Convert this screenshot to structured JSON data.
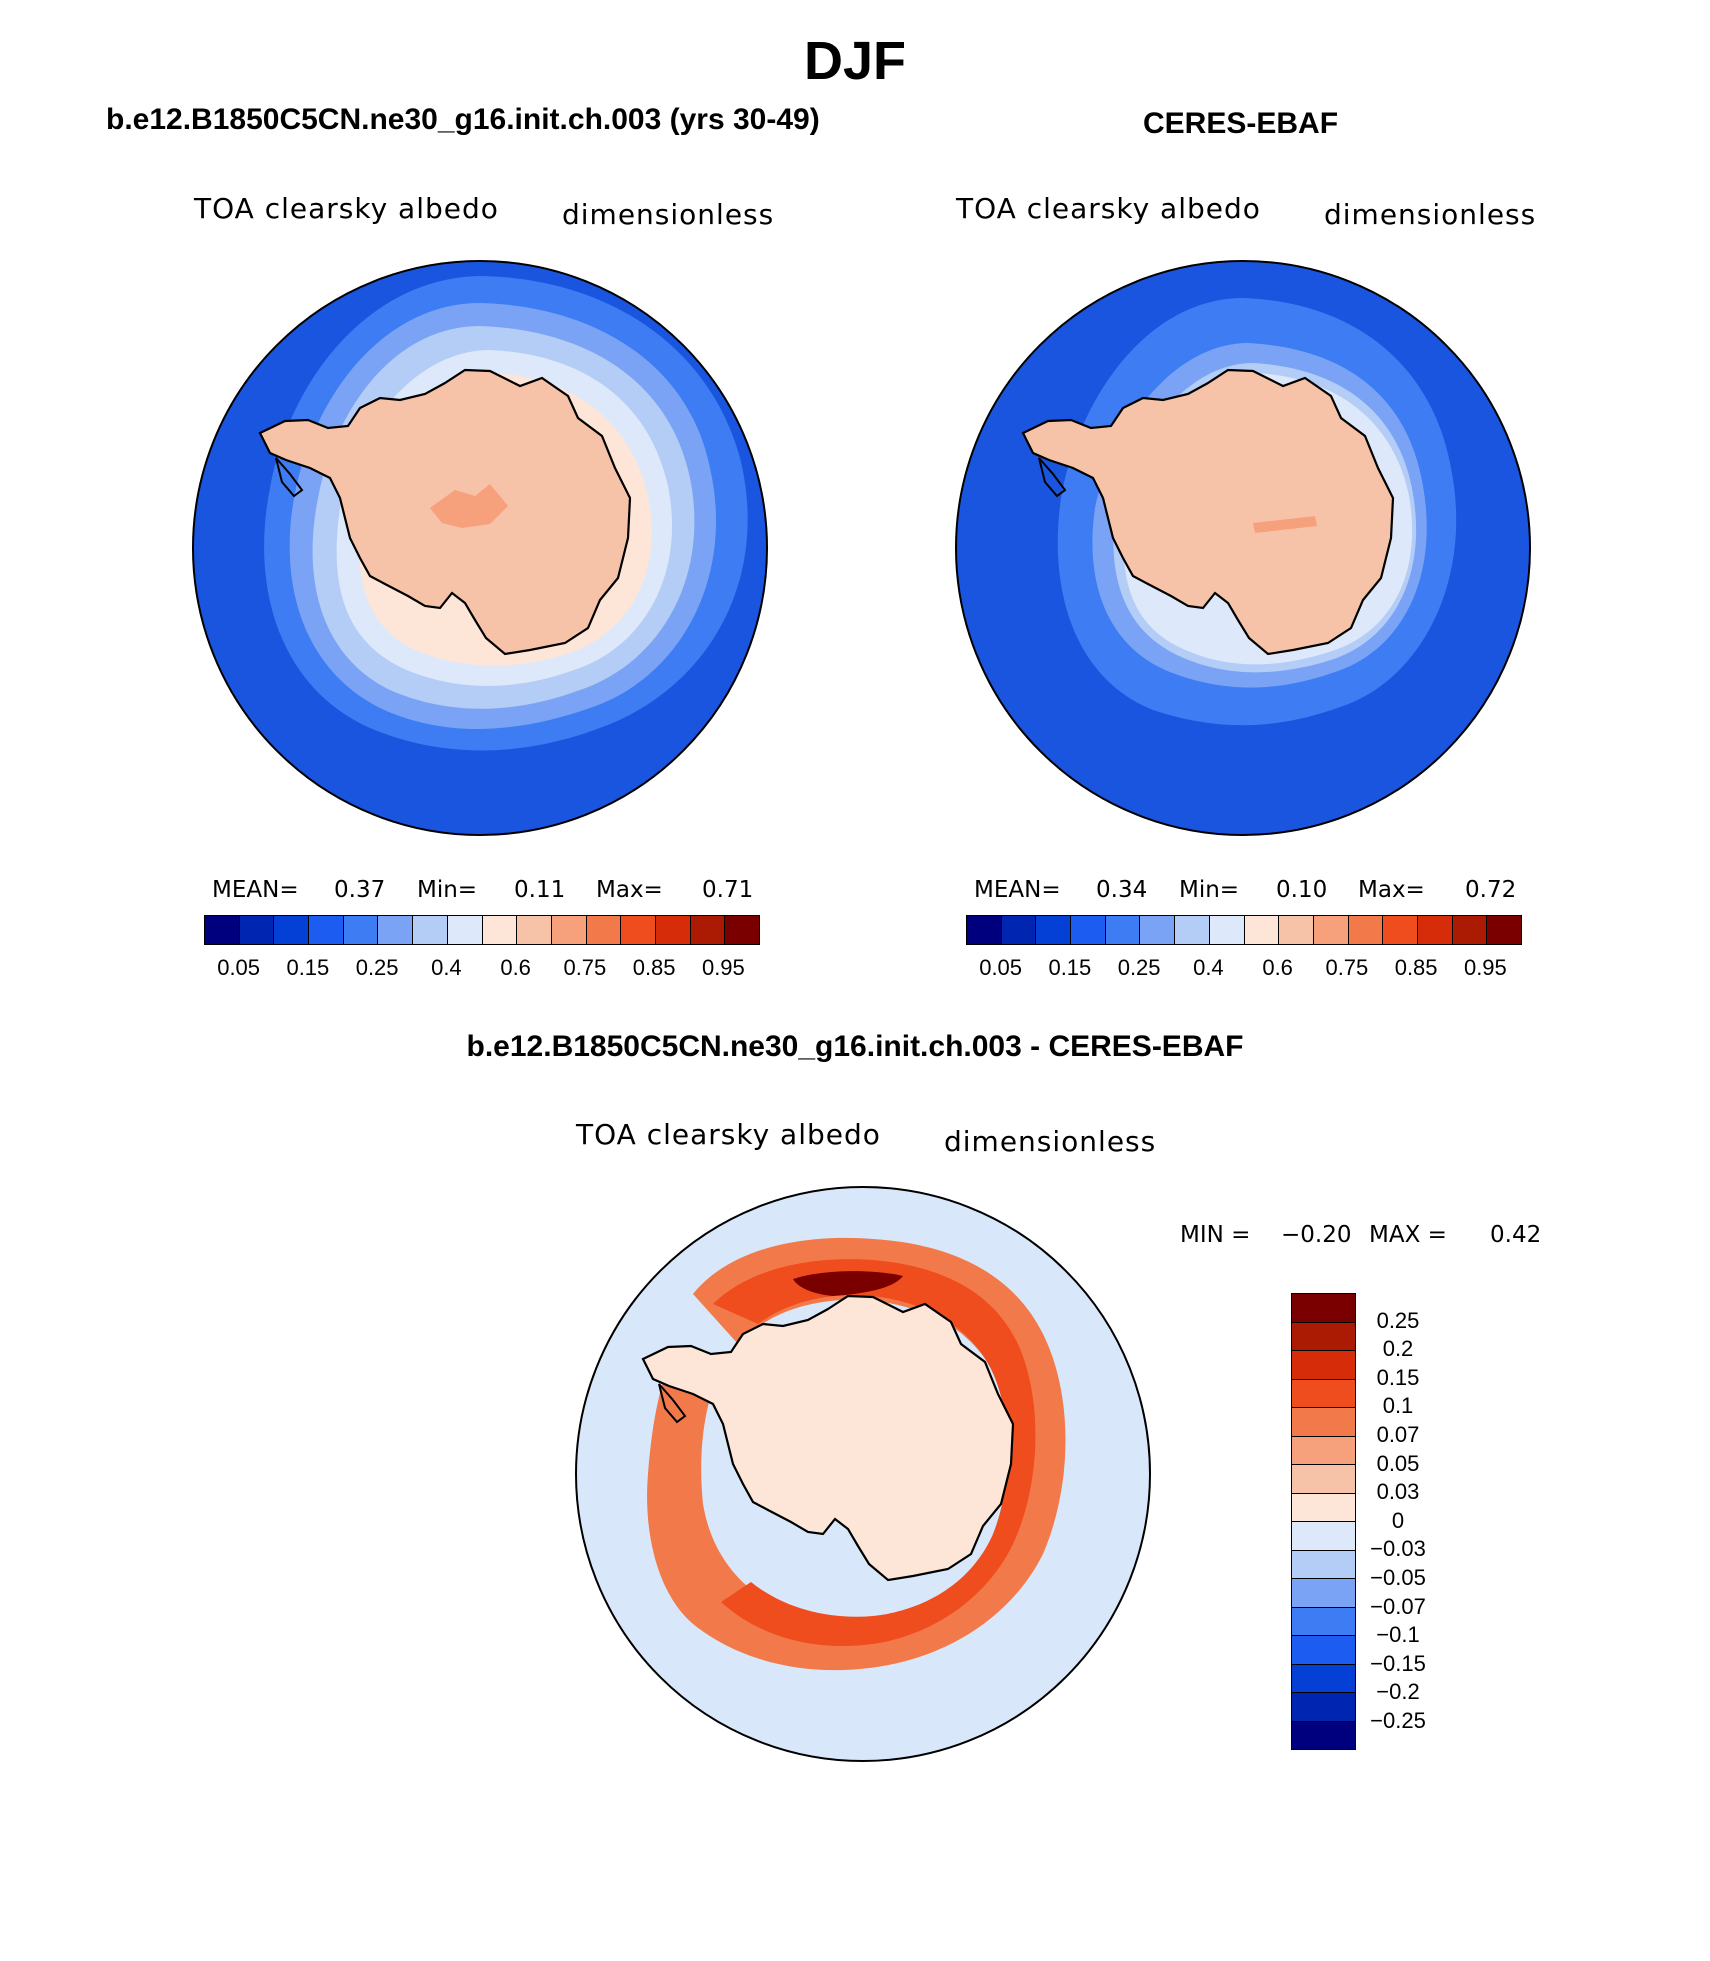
{
  "title": "DJF",
  "colors": {
    "ocean_model": "#1a55e0",
    "ocean_obs": "#1a55e0",
    "land": "#f7c3a8",
    "diff_background": "#d8e8fa",
    "coast": "#000000"
  },
  "abs_colorbar": {
    "colors": [
      "#00007f",
      "#0025b0",
      "#0540d6",
      "#1c5cf0",
      "#3d7cf2",
      "#7aa3f5",
      "#b4cdf7",
      "#dde8fa",
      "#fde6d7",
      "#f7c3a8",
      "#f6a07c",
      "#f27a4a",
      "#f04d1e",
      "#d72c0a",
      "#ab1a02",
      "#7a0000"
    ],
    "tick_labels": [
      "0.05",
      "0.15",
      "0.25",
      "0.4",
      "0.6",
      "0.75",
      "0.85",
      "0.95"
    ]
  },
  "diff_colorbar": {
    "colors": [
      "#7a0000",
      "#ab1a02",
      "#d72c0a",
      "#f04d1e",
      "#f27a4a",
      "#f6a07c",
      "#f7c3a8",
      "#fde6d7",
      "#dde8fa",
      "#b4cdf7",
      "#7aa3f5",
      "#3d7cf2",
      "#1c5cf0",
      "#0540d6",
      "#0025b0",
      "#00007f"
    ],
    "labels": [
      "0.25",
      "0.2",
      "0.15",
      "0.1",
      "0.07",
      "0.05",
      "0.03",
      "0",
      "−0.03",
      "−0.05",
      "−0.07",
      "−0.1",
      "−0.15",
      "−0.2",
      "−0.25"
    ]
  },
  "panels": {
    "model": {
      "title": "b.e12.B1850C5CN.ne30_g16.init.ch.003 (yrs 30-49)",
      "variable": "TOA clearsky albedo",
      "units": "dimensionless",
      "mean_label": "MEAN=",
      "mean": "0.37",
      "min_label": "Min=",
      "min": "0.11",
      "max_label": "Max=",
      "max": "0.71"
    },
    "obs": {
      "title": "CERES-EBAF",
      "variable": "TOA clearsky albedo",
      "units": "dimensionless",
      "mean_label": "MEAN=",
      "mean": "0.34",
      "min_label": "Min=",
      "min": "0.10",
      "max_label": "Max=",
      "max": "0.72"
    },
    "diff": {
      "title": "b.e12.B1850C5CN.ne30_g16.init.ch.003 - CERES-EBAF",
      "variable": "TOA clearsky albedo",
      "units": "dimensionless",
      "min_label": "MIN =",
      "min": "−0.20",
      "max_label": "MAX =",
      "max": "0.42"
    }
  }
}
